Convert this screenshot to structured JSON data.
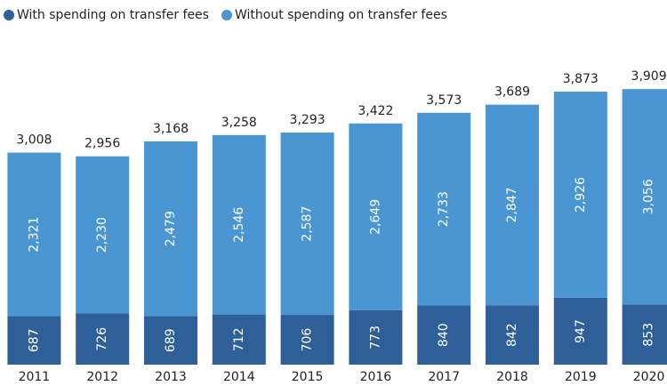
{
  "chart_data": {
    "type": "stacked_bar",
    "categories": [
      "2011",
      "2012",
      "2013",
      "2014",
      "2015",
      "2016",
      "2017",
      "2018",
      "2019",
      "2020"
    ],
    "series": [
      {
        "name": "With spending on transfer fees",
        "color": "#2f5f98",
        "values": [
          687,
          726,
          689,
          712,
          706,
          773,
          840,
          842,
          947,
          853
        ]
      },
      {
        "name": "Without spending on transfer fees",
        "color": "#4a96d2",
        "values": [
          2321,
          2230,
          2479,
          2546,
          2587,
          2649,
          2733,
          2847,
          2926,
          3056
        ],
        "value_labels": [
          "2,321",
          "2,230",
          "2,479",
          "2,546",
          "2,587",
          "2,649",
          "2,733",
          "2,847",
          "2,926",
          "3,056"
        ]
      }
    ],
    "total_labels": [
      "3,008",
      "2,956",
      "3,168",
      "3,258",
      "3,293",
      "3,422",
      "3,573",
      "3,689",
      "3,873",
      "3,909"
    ],
    "ylim": [
      0,
      4000
    ],
    "legend": "top-left"
  }
}
